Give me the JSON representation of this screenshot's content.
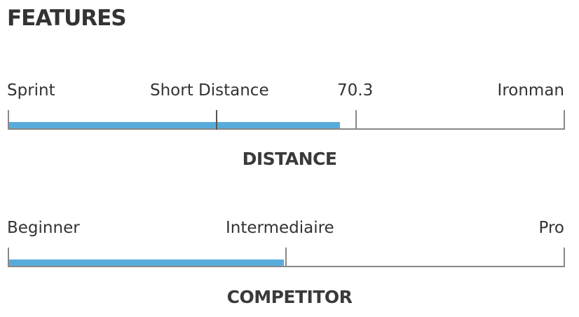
{
  "title": "FEATURES",
  "accent_color": "#58acdc",
  "scales": [
    {
      "caption": "DISTANCE",
      "labels": [
        "Sprint",
        "Short Distance",
        "70.3",
        "Ironman"
      ],
      "fill_fraction": 0.596
    },
    {
      "caption": "COMPETITOR",
      "labels": [
        "Beginner",
        "Intermediaire",
        "Pro"
      ],
      "fill_fraction": 0.495
    }
  ]
}
